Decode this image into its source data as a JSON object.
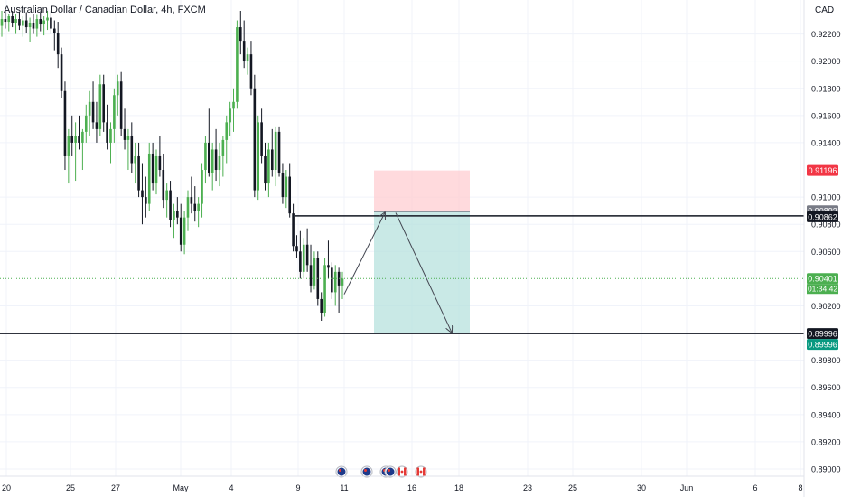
{
  "title": "Australian Dollar / Canadian Dollar, 4h, FXCM",
  "currency": "CAD",
  "colors": {
    "up": "#4caf50",
    "down": "#131722",
    "stop_zone": "#ffcdd2",
    "target_zone": "#b2dfdb",
    "stop_label": "#f23645",
    "current_label": "#4caf50",
    "target_label": "#089981",
    "line_label": "#131722",
    "entry_label": "#787b86"
  },
  "chart_data": {
    "type": "candlestick",
    "symbol": "AUDCAD",
    "interval": "4h",
    "source": "FXCM",
    "ylim": [
      0.8898,
      0.9237
    ],
    "yticks": [
      0.922,
      0.92,
      0.918,
      0.916,
      0.914,
      0.91,
      0.908,
      0.906,
      0.902,
      0.898,
      0.896,
      0.894,
      0.892,
      0.89
    ],
    "ytick_labels": [
      "0.92200",
      "0.92000",
      "0.91800",
      "0.91600",
      "0.91400",
      "0.91000",
      "0.90800",
      "0.90600",
      "0.90200",
      "0.89800",
      "0.89600",
      "0.89400",
      "0.89200",
      "0.89000"
    ],
    "x_labels": [
      "20",
      "25",
      "27",
      "May",
      "4",
      "9",
      "11",
      "16",
      "18",
      "23",
      "25",
      "30",
      "Jun",
      "6",
      "8"
    ],
    "candles": [
      [
        0.9226,
        0.9237,
        0.9218,
        0.9231
      ],
      [
        0.9231,
        0.9237,
        0.9224,
        0.9229
      ],
      [
        0.9229,
        0.9235,
        0.9222,
        0.9233
      ],
      [
        0.9233,
        0.9237,
        0.9225,
        0.9228
      ],
      [
        0.9228,
        0.9235,
        0.922,
        0.9231
      ],
      [
        0.9231,
        0.9236,
        0.9223,
        0.9226
      ],
      [
        0.9226,
        0.9233,
        0.9218,
        0.923
      ],
      [
        0.923,
        0.9236,
        0.9221,
        0.9225
      ],
      [
        0.9225,
        0.9232,
        0.9214,
        0.9228
      ],
      [
        0.9228,
        0.9235,
        0.922,
        0.9224
      ],
      [
        0.9224,
        0.9234,
        0.9218,
        0.9231
      ],
      [
        0.9231,
        0.9236,
        0.9222,
        0.9227
      ],
      [
        0.9227,
        0.9233,
        0.9219,
        0.923
      ],
      [
        0.923,
        0.9237,
        0.9223,
        0.9232
      ],
      [
        0.9232,
        0.9237,
        0.922,
        0.9224
      ],
      [
        0.9224,
        0.923,
        0.9208,
        0.9221
      ],
      [
        0.9221,
        0.9229,
        0.9195,
        0.9205
      ],
      [
        0.9205,
        0.921,
        0.9173,
        0.9178
      ],
      [
        0.9178,
        0.9185,
        0.912,
        0.913
      ],
      [
        0.913,
        0.915,
        0.911,
        0.9145
      ],
      [
        0.9145,
        0.916,
        0.913,
        0.914
      ],
      [
        0.914,
        0.9155,
        0.9112,
        0.9145
      ],
      [
        0.9145,
        0.916,
        0.9135,
        0.914
      ],
      [
        0.914,
        0.915,
        0.912,
        0.9148
      ],
      [
        0.9148,
        0.9168,
        0.914,
        0.916
      ],
      [
        0.916,
        0.9178,
        0.9145,
        0.917
      ],
      [
        0.917,
        0.9185,
        0.915,
        0.9155
      ],
      [
        0.9155,
        0.917,
        0.914,
        0.915
      ],
      [
        0.915,
        0.919,
        0.9145,
        0.9183
      ],
      [
        0.9183,
        0.919,
        0.9148,
        0.9155
      ],
      [
        0.9155,
        0.9168,
        0.9135,
        0.914
      ],
      [
        0.914,
        0.9155,
        0.9125,
        0.915
      ],
      [
        0.915,
        0.918,
        0.914,
        0.9175
      ],
      [
        0.9175,
        0.919,
        0.916,
        0.9185
      ],
      [
        0.9185,
        0.9192,
        0.9145,
        0.915
      ],
      [
        0.915,
        0.9165,
        0.9135,
        0.9142
      ],
      [
        0.9142,
        0.915,
        0.912,
        0.9145
      ],
      [
        0.9145,
        0.9155,
        0.9118,
        0.9125
      ],
      [
        0.9125,
        0.914,
        0.911,
        0.913
      ],
      [
        0.913,
        0.914,
        0.91,
        0.9105
      ],
      [
        0.9105,
        0.9125,
        0.908,
        0.91
      ],
      [
        0.91,
        0.9115,
        0.9085,
        0.9095
      ],
      [
        0.9095,
        0.914,
        0.909,
        0.9132
      ],
      [
        0.9132,
        0.914,
        0.9105,
        0.911
      ],
      [
        0.911,
        0.9135,
        0.9102,
        0.913
      ],
      [
        0.913,
        0.9145,
        0.9115,
        0.912
      ],
      [
        0.912,
        0.9132,
        0.9092,
        0.9098
      ],
      [
        0.9098,
        0.911,
        0.9085,
        0.9105
      ],
      [
        0.9105,
        0.9112,
        0.9078,
        0.9083
      ],
      [
        0.9083,
        0.9095,
        0.907,
        0.909
      ],
      [
        0.909,
        0.91,
        0.908,
        0.9085
      ],
      [
        0.9085,
        0.9095,
        0.906,
        0.9065
      ],
      [
        0.9065,
        0.909,
        0.9058,
        0.9085
      ],
      [
        0.9085,
        0.9105,
        0.9075,
        0.91
      ],
      [
        0.91,
        0.9115,
        0.9088,
        0.9095
      ],
      [
        0.9095,
        0.9108,
        0.9082,
        0.909
      ],
      [
        0.909,
        0.91,
        0.9078,
        0.9095
      ],
      [
        0.9095,
        0.9125,
        0.9085,
        0.912
      ],
      [
        0.912,
        0.9145,
        0.911,
        0.914
      ],
      [
        0.914,
        0.9165,
        0.9115,
        0.9118
      ],
      [
        0.9118,
        0.914,
        0.9105,
        0.9135
      ],
      [
        0.9135,
        0.915,
        0.9112,
        0.912
      ],
      [
        0.912,
        0.914,
        0.9108,
        0.913
      ],
      [
        0.913,
        0.9145,
        0.9115,
        0.9142
      ],
      [
        0.9142,
        0.916,
        0.9125,
        0.9155
      ],
      [
        0.9155,
        0.917,
        0.9145,
        0.9165
      ],
      [
        0.9165,
        0.918,
        0.9148,
        0.917
      ],
      [
        0.917,
        0.923,
        0.9165,
        0.9225
      ],
      [
        0.9225,
        0.9237,
        0.9205,
        0.9215
      ],
      [
        0.9215,
        0.923,
        0.9195,
        0.92
      ],
      [
        0.92,
        0.921,
        0.919,
        0.9205
      ],
      [
        0.9205,
        0.9215,
        0.9175,
        0.918
      ],
      [
        0.918,
        0.919,
        0.91,
        0.9105
      ],
      [
        0.9105,
        0.916,
        0.9098,
        0.9155
      ],
      [
        0.9155,
        0.9165,
        0.9125,
        0.913
      ],
      [
        0.913,
        0.914,
        0.9105,
        0.911
      ],
      [
        0.911,
        0.914,
        0.91,
        0.9135
      ],
      [
        0.9135,
        0.915,
        0.9115,
        0.912
      ],
      [
        0.912,
        0.9152,
        0.9108,
        0.9148
      ],
      [
        0.9148,
        0.9152,
        0.9115,
        0.9118
      ],
      [
        0.9118,
        0.9125,
        0.9095,
        0.91
      ],
      [
        0.91,
        0.912,
        0.9092,
        0.9115
      ],
      [
        0.9115,
        0.9125,
        0.9085,
        0.9088
      ],
      [
        0.9088,
        0.9095,
        0.906,
        0.9064
      ],
      [
        0.9064,
        0.9072,
        0.9055,
        0.906
      ],
      [
        0.906,
        0.9075,
        0.904,
        0.9045
      ],
      [
        0.9045,
        0.907,
        0.904,
        0.9065
      ],
      [
        0.9065,
        0.9077,
        0.9045,
        0.905
      ],
      [
        0.905,
        0.9065,
        0.903,
        0.9035
      ],
      [
        0.9035,
        0.906,
        0.9032,
        0.9055
      ],
      [
        0.9055,
        0.906,
        0.902,
        0.9025
      ],
      [
        0.9025,
        0.903,
        0.9009,
        0.9015
      ],
      [
        0.9015,
        0.9055,
        0.9012,
        0.905
      ],
      [
        0.905,
        0.9068,
        0.904,
        0.9048
      ],
      [
        0.9048,
        0.9052,
        0.9025,
        0.903
      ],
      [
        0.903,
        0.905,
        0.902,
        0.9045
      ],
      [
        0.9045,
        0.9048,
        0.9015,
        0.9035
      ],
      [
        0.9035,
        0.9045,
        0.9025,
        0.904
      ]
    ],
    "horizontal_lines": [
      {
        "price": 0.90862,
        "label": "0.90862"
      },
      {
        "price": 0.89996,
        "label": "0.89996"
      }
    ],
    "current_price": {
      "price": 0.90401,
      "label": "0.90401",
      "countdown": "01:34:42"
    },
    "short_position": {
      "entry": 0.90893,
      "entry_label": "0.90893",
      "stop": 0.91196,
      "stop_label": "0.91196",
      "target": 0.89996,
      "target_label": "0.89996"
    },
    "event_icons": [
      "au-flag-icon",
      "au-flag-icon",
      "au-flag-icon",
      "au-flag-icon",
      "ca-flag-icon",
      "ca-flag-icon"
    ]
  }
}
